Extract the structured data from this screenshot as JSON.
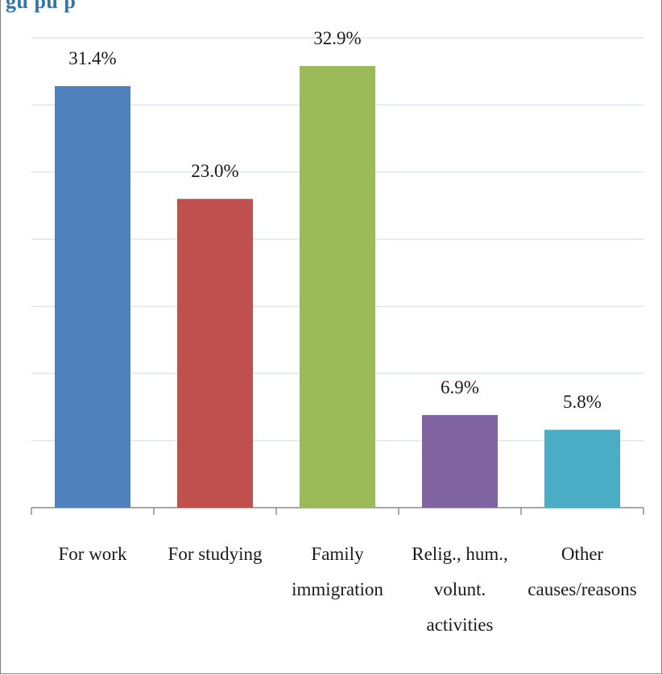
{
  "title_partial": "gu       pu p",
  "chart_data": {
    "type": "bar",
    "title": "",
    "xlabel": "",
    "ylabel": "",
    "ylim": [
      0,
      35
    ],
    "grid": true,
    "legend": "none",
    "categories": [
      [
        "For work"
      ],
      [
        "For studying"
      ],
      [
        "Family",
        "immigration"
      ],
      [
        "Relig., hum.,",
        "volunt.",
        "activities"
      ],
      [
        "Other",
        "causes/reasons"
      ]
    ],
    "values": [
      31.4,
      23.0,
      32.9,
      6.9,
      5.8
    ],
    "value_labels": [
      "31.4%",
      "23.0%",
      "32.9%",
      "6.9%",
      "5.8%"
    ],
    "colors": [
      "#4f81bd",
      "#c0504d",
      "#9bbb59",
      "#8064a2",
      "#4bacc6"
    ]
  }
}
